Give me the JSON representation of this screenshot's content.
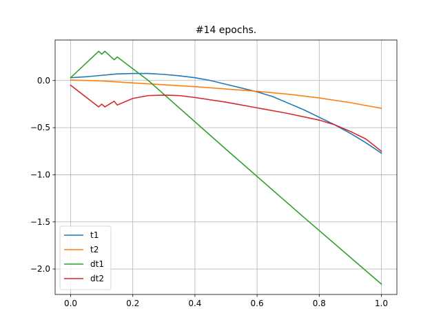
{
  "chart_data": {
    "type": "line",
    "title": "#14 epochs.",
    "xlabel": "",
    "ylabel": "",
    "xlim": [
      -0.05,
      1.05
    ],
    "ylim": [
      -2.27,
      0.43
    ],
    "xticks": [
      0.0,
      0.2,
      0.4,
      0.6,
      0.8,
      1.0
    ],
    "xtick_labels": [
      "0.0",
      "0.2",
      "0.4",
      "0.6",
      "0.8",
      "1.0"
    ],
    "yticks": [
      0.0,
      -0.5,
      -1.0,
      -1.5,
      -2.0
    ],
    "ytick_labels": [
      "0.0",
      "−0.5",
      "−1.0",
      "−1.5",
      "−2.0"
    ],
    "grid": true,
    "legend_position": "lower-left",
    "series": [
      {
        "name": "t1",
        "color": "#1f77b4",
        "x": [
          0.0,
          0.05,
          0.1,
          0.15,
          0.2,
          0.25,
          0.3,
          0.35,
          0.4,
          0.45,
          0.5,
          0.55,
          0.6,
          0.65,
          0.7,
          0.75,
          0.8,
          0.85,
          0.9,
          0.95,
          1.0
        ],
        "y": [
          0.03,
          0.04,
          0.055,
          0.07,
          0.075,
          0.075,
          0.065,
          0.05,
          0.03,
          0.0,
          -0.04,
          -0.08,
          -0.12,
          -0.17,
          -0.24,
          -0.31,
          -0.39,
          -0.47,
          -0.56,
          -0.66,
          -0.77
        ]
      },
      {
        "name": "t2",
        "color": "#ff7f0e",
        "x": [
          0.0,
          0.1,
          0.2,
          0.3,
          0.4,
          0.5,
          0.6,
          0.7,
          0.8,
          0.9,
          1.0
        ],
        "y": [
          0.005,
          -0.005,
          -0.025,
          -0.045,
          -0.065,
          -0.09,
          -0.115,
          -0.145,
          -0.185,
          -0.235,
          -0.295
        ]
      },
      {
        "name": "dt1",
        "color": "#2ca02c",
        "x": [
          0.0,
          0.09,
          0.1,
          0.11,
          0.14,
          0.15,
          0.25,
          0.5,
          0.75,
          1.0
        ],
        "y": [
          0.03,
          0.31,
          0.28,
          0.31,
          0.22,
          0.25,
          0.0,
          -0.73,
          -1.45,
          -2.16
        ]
      },
      {
        "name": "dt2",
        "color": "#d62728",
        "x": [
          0.0,
          0.09,
          0.1,
          0.11,
          0.14,
          0.15,
          0.2,
          0.25,
          0.3,
          0.35,
          0.4,
          0.5,
          0.6,
          0.7,
          0.8,
          0.85,
          0.9,
          0.95,
          1.0
        ],
        "y": [
          -0.05,
          -0.28,
          -0.25,
          -0.28,
          -0.22,
          -0.26,
          -0.19,
          -0.16,
          -0.155,
          -0.16,
          -0.18,
          -0.23,
          -0.29,
          -0.35,
          -0.42,
          -0.47,
          -0.54,
          -0.62,
          -0.75
        ]
      }
    ]
  }
}
